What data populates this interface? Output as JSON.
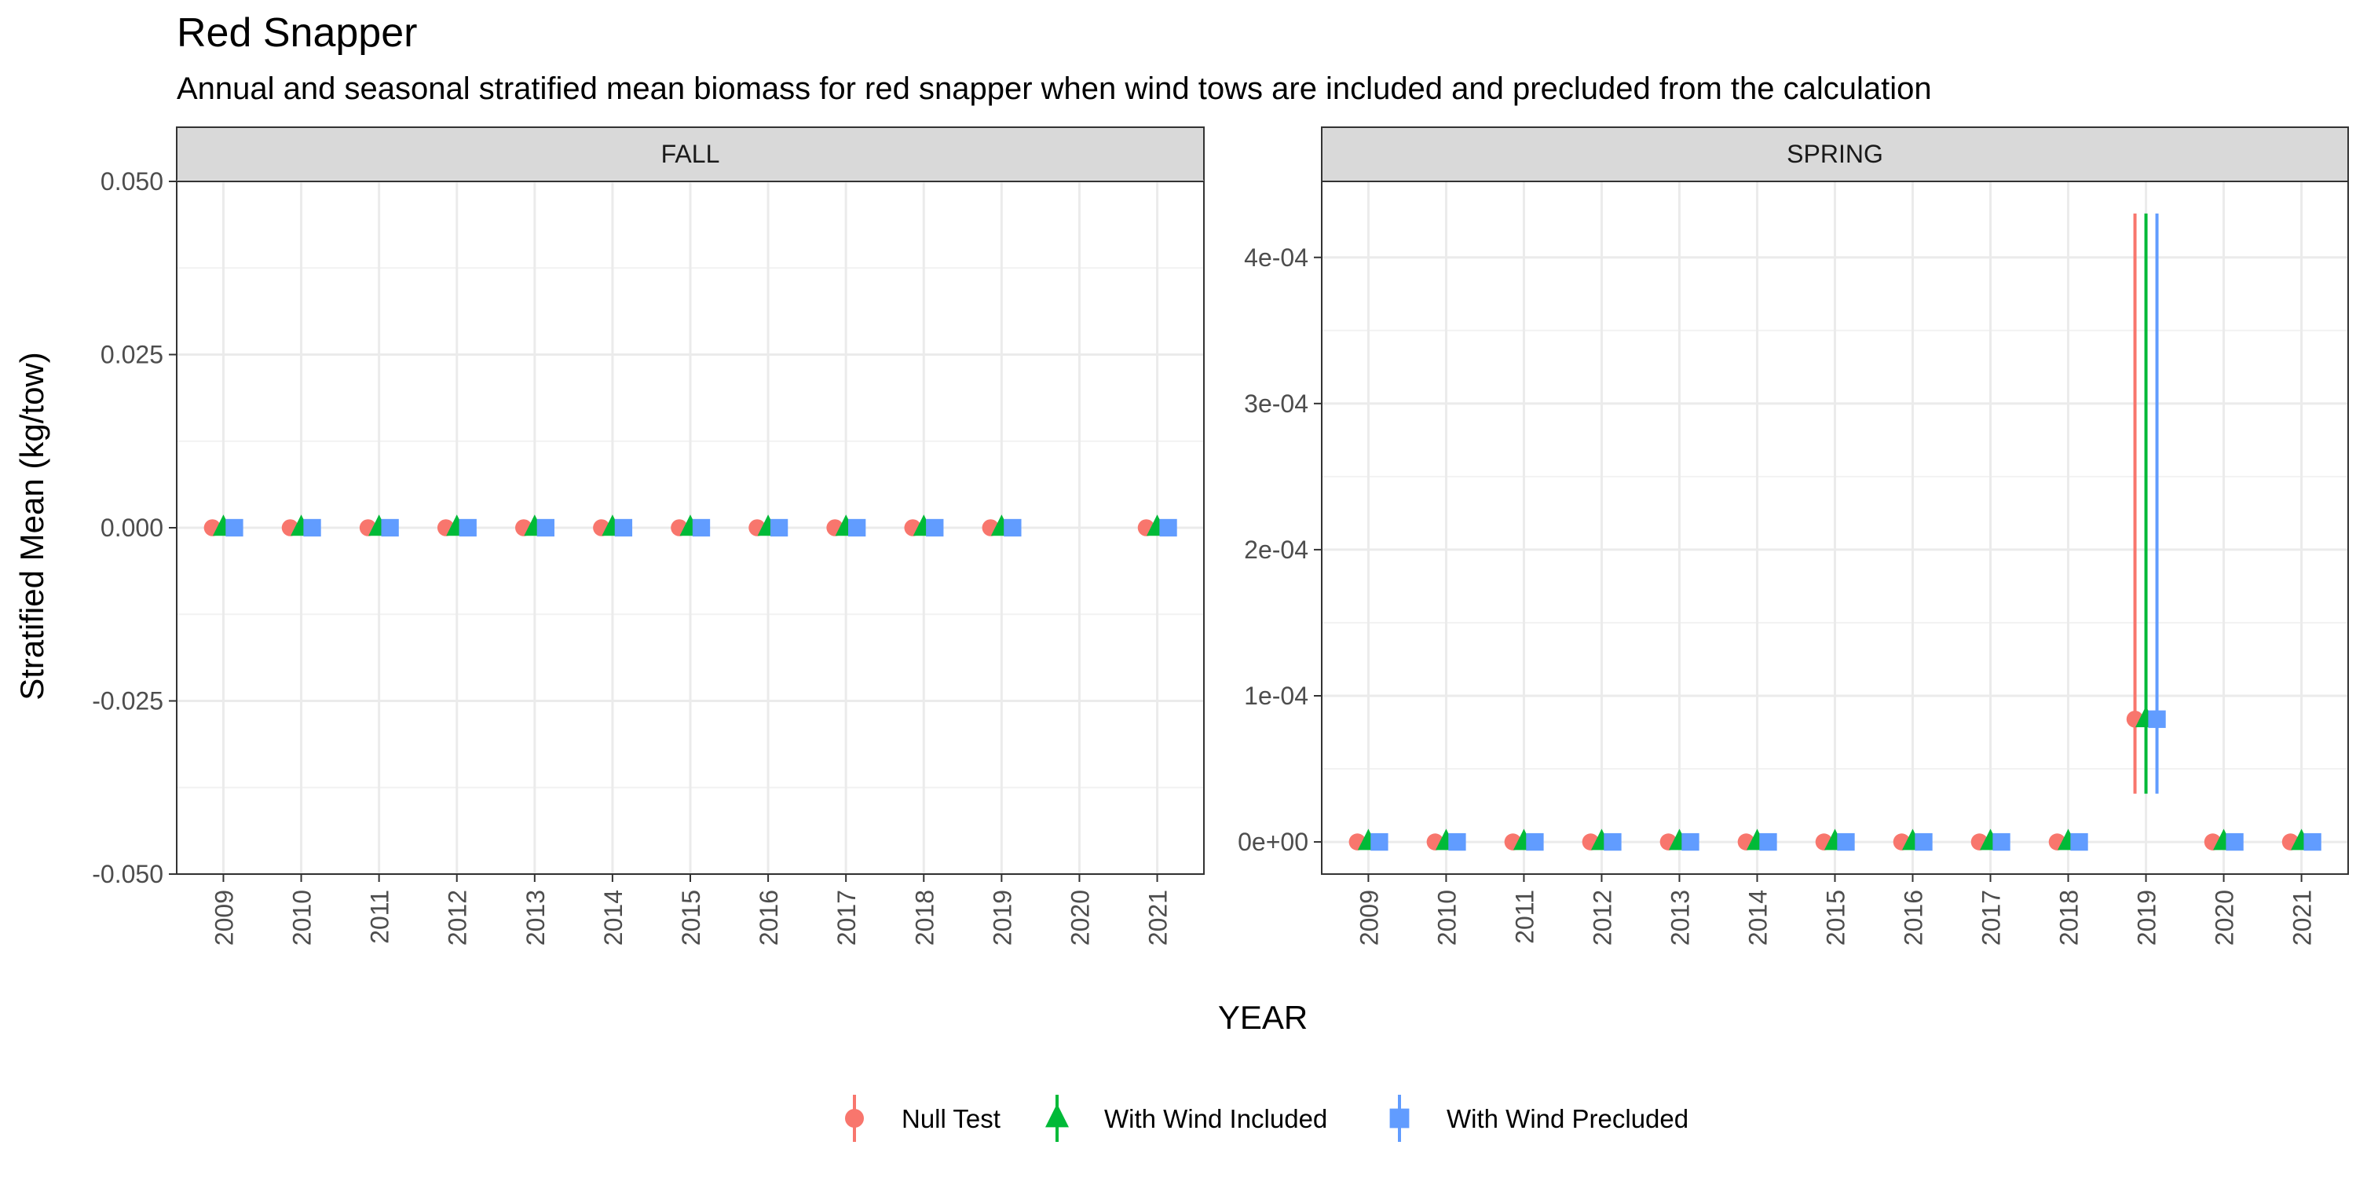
{
  "title": "Red Snapper",
  "subtitle": "Annual and seasonal stratified mean biomass for red snapper when wind tows are included and precluded from the calculation",
  "colors": {
    "null_test": "#F8766D",
    "wind_included": "#00BA38",
    "wind_precluded": "#619CFF",
    "strip_fill": "#d9d9d9",
    "grid": "#ebebeb"
  },
  "chart_data": [
    {
      "type": "scatter",
      "panel": "FALL",
      "xlabel": "YEAR",
      "ylabel": "Stratified Mean (kg/tow)",
      "x_categories": [
        "2009",
        "2010",
        "2011",
        "2012",
        "2013",
        "2014",
        "2015",
        "2016",
        "2017",
        "2018",
        "2019",
        "2020",
        "2021"
      ],
      "ylim": [
        -0.05,
        0.05
      ],
      "y_ticks": [
        -0.05,
        -0.025,
        0.0,
        0.025,
        0.05
      ],
      "y_tick_labels": [
        "-0.050",
        "-0.025",
        "0.000",
        "0.025",
        "0.050"
      ],
      "series": [
        {
          "name": "Null Test",
          "marker": "circle",
          "color": "#F8766D",
          "points": [
            {
              "x": "2009",
              "y": 0
            },
            {
              "x": "2010",
              "y": 0
            },
            {
              "x": "2011",
              "y": 0
            },
            {
              "x": "2012",
              "y": 0
            },
            {
              "x": "2013",
              "y": 0
            },
            {
              "x": "2014",
              "y": 0
            },
            {
              "x": "2015",
              "y": 0
            },
            {
              "x": "2016",
              "y": 0
            },
            {
              "x": "2017",
              "y": 0
            },
            {
              "x": "2018",
              "y": 0
            },
            {
              "x": "2019",
              "y": 0
            },
            {
              "x": "2021",
              "y": 0
            }
          ]
        },
        {
          "name": "With Wind Included",
          "marker": "triangle",
          "color": "#00BA38",
          "points": [
            {
              "x": "2009",
              "y": 0
            },
            {
              "x": "2010",
              "y": 0
            },
            {
              "x": "2011",
              "y": 0
            },
            {
              "x": "2012",
              "y": 0
            },
            {
              "x": "2013",
              "y": 0
            },
            {
              "x": "2014",
              "y": 0
            },
            {
              "x": "2015",
              "y": 0
            },
            {
              "x": "2016",
              "y": 0
            },
            {
              "x": "2017",
              "y": 0
            },
            {
              "x": "2018",
              "y": 0
            },
            {
              "x": "2019",
              "y": 0
            },
            {
              "x": "2021",
              "y": 0
            }
          ]
        },
        {
          "name": "With Wind Precluded",
          "marker": "square",
          "color": "#619CFF",
          "points": [
            {
              "x": "2009",
              "y": 0
            },
            {
              "x": "2010",
              "y": 0
            },
            {
              "x": "2011",
              "y": 0
            },
            {
              "x": "2012",
              "y": 0
            },
            {
              "x": "2013",
              "y": 0
            },
            {
              "x": "2014",
              "y": 0
            },
            {
              "x": "2015",
              "y": 0
            },
            {
              "x": "2016",
              "y": 0
            },
            {
              "x": "2017",
              "y": 0
            },
            {
              "x": "2018",
              "y": 0
            },
            {
              "x": "2019",
              "y": 0
            },
            {
              "x": "2021",
              "y": 0
            }
          ]
        }
      ],
      "grid": true
    },
    {
      "type": "scatter",
      "panel": "SPRING",
      "xlabel": "YEAR",
      "ylabel": "Stratified Mean (kg/tow)",
      "x_categories": [
        "2009",
        "2010",
        "2011",
        "2012",
        "2013",
        "2014",
        "2015",
        "2016",
        "2017",
        "2018",
        "2019",
        "2020",
        "2021"
      ],
      "ylim": [
        -2.2e-05,
        0.000452
      ],
      "y_ticks": [
        0,
        0.0001,
        0.0002,
        0.0003,
        0.0004
      ],
      "y_tick_labels": [
        "0e+00",
        "1e-04",
        "2e-04",
        "3e-04",
        "4e-04"
      ],
      "series": [
        {
          "name": "Null Test",
          "marker": "circle",
          "color": "#F8766D",
          "points": [
            {
              "x": "2009",
              "y": 0
            },
            {
              "x": "2010",
              "y": 0
            },
            {
              "x": "2011",
              "y": 0
            },
            {
              "x": "2012",
              "y": 0
            },
            {
              "x": "2013",
              "y": 0
            },
            {
              "x": "2014",
              "y": 0
            },
            {
              "x": "2015",
              "y": 0
            },
            {
              "x": "2016",
              "y": 0
            },
            {
              "x": "2017",
              "y": 0
            },
            {
              "x": "2018",
              "y": 0
            },
            {
              "x": "2019",
              "y": 8.4e-05,
              "ymin": 3.3e-05,
              "ymax": 0.00043
            },
            {
              "x": "2020",
              "y": 0
            },
            {
              "x": "2021",
              "y": 0
            }
          ]
        },
        {
          "name": "With Wind Included",
          "marker": "triangle",
          "color": "#00BA38",
          "points": [
            {
              "x": "2009",
              "y": 0
            },
            {
              "x": "2010",
              "y": 0
            },
            {
              "x": "2011",
              "y": 0
            },
            {
              "x": "2012",
              "y": 0
            },
            {
              "x": "2013",
              "y": 0
            },
            {
              "x": "2014",
              "y": 0
            },
            {
              "x": "2015",
              "y": 0
            },
            {
              "x": "2016",
              "y": 0
            },
            {
              "x": "2017",
              "y": 0
            },
            {
              "x": "2018",
              "y": 0
            },
            {
              "x": "2019",
              "y": 8.4e-05,
              "ymin": 3.3e-05,
              "ymax": 0.00043
            },
            {
              "x": "2020",
              "y": 0
            },
            {
              "x": "2021",
              "y": 0
            }
          ]
        },
        {
          "name": "With Wind Precluded",
          "marker": "square",
          "color": "#619CFF",
          "points": [
            {
              "x": "2009",
              "y": 0
            },
            {
              "x": "2010",
              "y": 0
            },
            {
              "x": "2011",
              "y": 0
            },
            {
              "x": "2012",
              "y": 0
            },
            {
              "x": "2013",
              "y": 0
            },
            {
              "x": "2014",
              "y": 0
            },
            {
              "x": "2015",
              "y": 0
            },
            {
              "x": "2016",
              "y": 0
            },
            {
              "x": "2017",
              "y": 0
            },
            {
              "x": "2018",
              "y": 0
            },
            {
              "x": "2019",
              "y": 8.4e-05,
              "ymin": 3.3e-05,
              "ymax": 0.00043
            },
            {
              "x": "2020",
              "y": 0
            },
            {
              "x": "2021",
              "y": 0
            }
          ]
        }
      ],
      "grid": true
    }
  ],
  "legend": {
    "position": "bottom",
    "items": [
      {
        "label": "Null Test",
        "marker": "circle",
        "color": "#F8766D"
      },
      {
        "label": "With Wind Included",
        "marker": "triangle",
        "color": "#00BA38"
      },
      {
        "label": "With Wind Precluded",
        "marker": "square",
        "color": "#619CFF"
      }
    ]
  }
}
